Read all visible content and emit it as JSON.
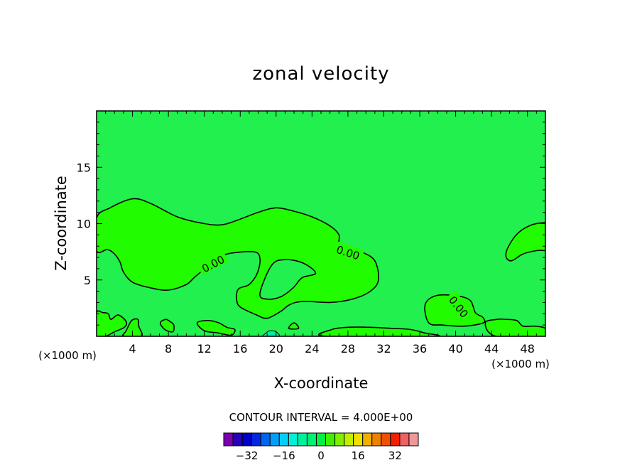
{
  "chart_data": {
    "type": "contour",
    "title": "zonal velocity",
    "xlabel": "X-coordinate",
    "ylabel": "Z-coordinate",
    "x_unit_label": "(×1000 m)",
    "y_unit_label": "(×1000 m)",
    "xlim": [
      0,
      50
    ],
    "ylim": [
      0,
      20
    ],
    "x_ticks": [
      4,
      8,
      12,
      16,
      20,
      24,
      28,
      32,
      36,
      40,
      44,
      48
    ],
    "y_ticks": [
      5,
      10,
      15
    ],
    "contour_labels": [
      "0.00",
      "0.00",
      "0.00"
    ],
    "contour_interval_text": "CONTOUR INTERVAL = 4.000E+00",
    "colorbar": {
      "tick_labels": [
        "−32",
        "−16",
        "0",
        "16",
        "32"
      ],
      "tick_values": [
        -32,
        -16,
        0,
        16,
        32
      ],
      "colors": [
        "#7a00b0",
        "#2800b8",
        "#0000c8",
        "#0028e0",
        "#0064f0",
        "#00a0f8",
        "#00d0f8",
        "#00f0d8",
        "#00f0a0",
        "#00f070",
        "#00f040",
        "#40f000",
        "#80f000",
        "#c0f000",
        "#f0e000",
        "#f0b000",
        "#f08000",
        "#f05000",
        "#f02000",
        "#f06060",
        "#f09898"
      ],
      "midpoints": [
        -40,
        -36,
        -32,
        -28,
        -24,
        -20,
        -16,
        -12,
        -8,
        -4,
        0,
        4,
        8,
        12,
        16,
        20,
        24,
        28,
        32,
        36,
        40
      ]
    },
    "regions": {
      "background_color": "#22f04e",
      "background_range": [
        -4,
        0
      ],
      "positive_color": "#22fc00",
      "positive_range": [
        0,
        4
      ],
      "upper_zone": [
        [
          0,
          10.5
        ],
        [
          1.5,
          11.4
        ],
        [
          4,
          12.2
        ],
        [
          6,
          11.8
        ],
        [
          9,
          10.6
        ],
        [
          12,
          10
        ],
        [
          14,
          9.9
        ],
        [
          16,
          10.4
        ],
        [
          18,
          11
        ],
        [
          20,
          11.4
        ],
        [
          22,
          11.1
        ],
        [
          24,
          10.6
        ],
        [
          26,
          9.8
        ],
        [
          27,
          9
        ],
        [
          27,
          8.1
        ],
        [
          28,
          7.9
        ],
        [
          29.5,
          7.5
        ],
        [
          31,
          6.7
        ],
        [
          31.4,
          5
        ],
        [
          30.5,
          4
        ],
        [
          28.5,
          3.3
        ],
        [
          26,
          3
        ],
        [
          23,
          3.1
        ],
        [
          21.5,
          2.8
        ],
        [
          20.5,
          2.2
        ],
        [
          19,
          1.6
        ],
        [
          17.8,
          1.9
        ],
        [
          16,
          2.6
        ],
        [
          15.6,
          3.3
        ],
        [
          15.8,
          4.2
        ],
        [
          17,
          4.6
        ],
        [
          17.9,
          5.6
        ],
        [
          18.2,
          6.9
        ],
        [
          17.5,
          7.5
        ],
        [
          14.5,
          7.3
        ],
        [
          13,
          6.6
        ],
        [
          11,
          5.3
        ],
        [
          10,
          4.6
        ],
        [
          8,
          4.1
        ],
        [
          6,
          4.3
        ],
        [
          4,
          4.8
        ],
        [
          3,
          5.7
        ],
        [
          2.6,
          6.6
        ],
        [
          2,
          7.3
        ],
        [
          1.2,
          7.7
        ],
        [
          0,
          7.6
        ]
      ],
      "upper_hole": [
        [
          18.2,
          3.8
        ],
        [
          19.5,
          6.3
        ],
        [
          21,
          6.8
        ],
        [
          23,
          6.5
        ],
        [
          24.4,
          5.6
        ],
        [
          22.9,
          5.2
        ],
        [
          21.9,
          4.3
        ],
        [
          20.5,
          3.5
        ],
        [
          19,
          3.3
        ]
      ],
      "right_zone": [
        [
          50,
          10.1
        ],
        [
          48.5,
          9.9
        ],
        [
          47,
          9.2
        ],
        [
          45.9,
          8
        ],
        [
          45.6,
          7.1
        ],
        [
          46.2,
          6.7
        ],
        [
          47.5,
          7.3
        ],
        [
          49,
          7.6
        ],
        [
          50,
          7.6
        ]
      ],
      "lower_zone": [
        [
          37,
          1.2
        ],
        [
          36.6,
          2.8
        ],
        [
          37.8,
          3.6
        ],
        [
          40,
          3.6
        ],
        [
          41.6,
          3.2
        ],
        [
          42.2,
          2.1
        ],
        [
          43,
          1.7
        ],
        [
          43.1,
          1.2
        ],
        [
          41,
          0.9
        ],
        [
          38.5,
          1
        ]
      ],
      "ground_patches": [
        [
          [
            0,
            2.1
          ],
          [
            0.7,
            2.1
          ],
          [
            1.3,
            2
          ],
          [
            1.6,
            1.5
          ],
          [
            2.4,
            1.9
          ],
          [
            3.3,
            1.3
          ],
          [
            3.1,
            0.8
          ],
          [
            2,
            0.4
          ],
          [
            1,
            0
          ],
          [
            0,
            0
          ]
        ],
        [
          [
            3,
            0
          ],
          [
            3.3,
            0.5
          ],
          [
            3.9,
            1.4
          ],
          [
            4.6,
            1.5
          ],
          [
            4.7,
            0.9
          ],
          [
            5,
            0
          ]
        ],
        [
          [
            7.1,
            1.2
          ],
          [
            7.7,
            1.5
          ],
          [
            8.2,
            1.3
          ],
          [
            8.6,
            1
          ],
          [
            8.5,
            0.4
          ],
          [
            7.6,
            0.6
          ]
        ],
        [
          [
            11.2,
            1.2
          ],
          [
            12.4,
            1.4
          ],
          [
            13.6,
            1.2
          ],
          [
            14.5,
            0.8
          ],
          [
            15.4,
            0.6
          ],
          [
            15,
            0.1
          ],
          [
            13.5,
            0.3
          ],
          [
            12,
            0.5
          ]
        ],
        [
          [
            21.4,
            0.7
          ],
          [
            22,
            1.2
          ],
          [
            22.5,
            0.7
          ]
        ],
        [
          [
            25.5,
            0
          ],
          [
            26.2,
            0.6
          ],
          [
            28,
            0.8
          ],
          [
            30.5,
            0.8
          ],
          [
            33,
            0.7
          ],
          [
            35,
            0.6
          ],
          [
            36.5,
            0.3
          ],
          [
            37.5,
            0
          ]
        ],
        [
          [
            43.3,
            1.2
          ],
          [
            44.6,
            1.5
          ],
          [
            45.6,
            1.5
          ],
          [
            46.8,
            1.4
          ],
          [
            47.5,
            0.9
          ],
          [
            48.8,
            0.9
          ],
          [
            50,
            0.7
          ],
          [
            50,
            0
          ],
          [
            44.5,
            0
          ]
        ]
      ],
      "negative_patch": [
        [
          18.6,
          0
        ],
        [
          18.9,
          0.3
        ],
        [
          19.3,
          0.5
        ],
        [
          20,
          0.4
        ],
        [
          20.3,
          0
        ]
      ]
    }
  }
}
